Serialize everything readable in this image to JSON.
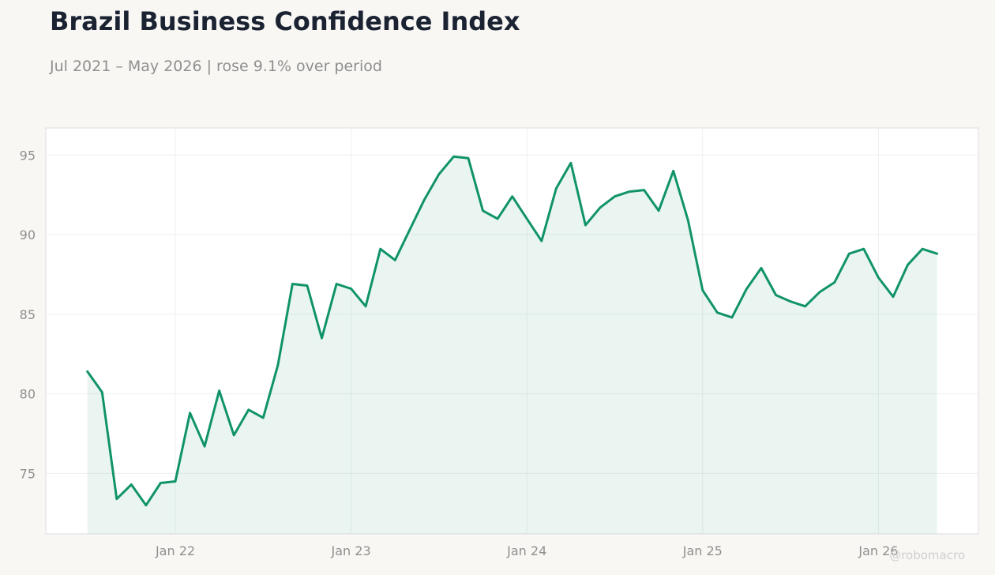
{
  "title": "Brazil Business Confidence Index",
  "subtitle": "Jul 2021 – May 2026 | rose 9.1% over period",
  "watermark": "@robomacro",
  "colors": {
    "background": "#f8f7f4",
    "plot_background": "#ffffff",
    "line": "#11936a",
    "fill": "#11936a",
    "title": "#1b2333",
    "muted_text": "#8f8f8f"
  },
  "chart_data": {
    "type": "area",
    "title": "Brazil Business Confidence Index",
    "subtitle": "Jul 2021 – May 2026 | rose 9.1% over period",
    "xlabel": "",
    "ylabel": "",
    "x_start": "2021-07",
    "x_frequency": "monthly",
    "x_ticks": [
      "2022-01",
      "2023-01",
      "2024-01",
      "2025-01",
      "2026-01"
    ],
    "x_tick_labels": [
      "Jan 22",
      "Jan 23",
      "Jan 24",
      "Jan 25",
      "Jan 26"
    ],
    "y_ticks": [
      75,
      80,
      85,
      90,
      95
    ],
    "ylim": [
      71.2,
      96.7
    ],
    "grid": true,
    "legend": "none",
    "series": [
      {
        "values": [
          81.4,
          80.1,
          73.4,
          74.3,
          73.0,
          74.4,
          74.5,
          78.8,
          76.7,
          80.2,
          77.4,
          79.0,
          78.5,
          81.8,
          86.9,
          86.8,
          83.5,
          86.9,
          86.6,
          85.5,
          89.1,
          88.4,
          90.3,
          92.2,
          93.8,
          94.9,
          94.8,
          91.5,
          91.0,
          92.4,
          91.0,
          89.6,
          92.9,
          94.5,
          90.6,
          91.7,
          92.4,
          92.7,
          92.8,
          91.5,
          94.0,
          90.9,
          86.5,
          85.1,
          84.8,
          86.6,
          87.9,
          86.2,
          85.8,
          85.5,
          86.4,
          87.0,
          88.8,
          89.1,
          87.3,
          86.1,
          88.1,
          89.1,
          88.8
        ]
      }
    ]
  }
}
